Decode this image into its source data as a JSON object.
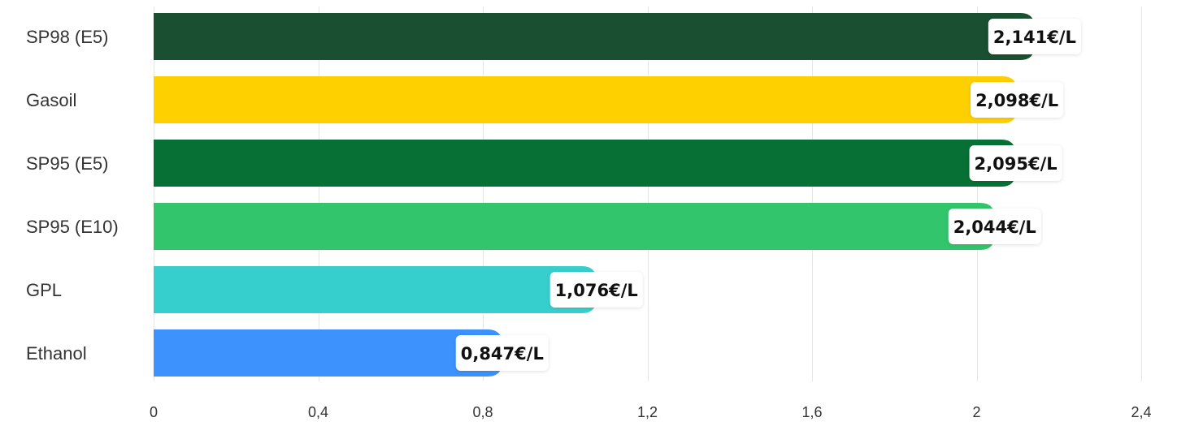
{
  "chart_data": {
    "type": "bar",
    "orientation": "horizontal",
    "categories": [
      "SP98 (E5)",
      "Gasoil",
      "SP95 (E5)",
      "SP95 (E10)",
      "GPL",
      "Ethanol"
    ],
    "values": [
      2.141,
      2.098,
      2.095,
      2.044,
      1.076,
      0.847
    ],
    "value_labels": [
      "2,141€/L",
      "2,098€/L",
      "2,095€/L",
      "2,044€/L",
      "1,076€/L",
      "0,847€/L"
    ],
    "bar_colors": [
      "#1b4f31",
      "#ffd000",
      "#077135",
      "#33c56c",
      "#37cfcd",
      "#3d92fd"
    ],
    "xlim": [
      0,
      2.4
    ],
    "x_ticks": [
      0,
      0.4,
      0.8,
      1.2,
      1.6,
      2,
      2.4
    ],
    "x_tick_labels": [
      "0",
      "0,4",
      "0,8",
      "1,2",
      "1,6",
      "2",
      "2,4"
    ],
    "grid": true,
    "legend": false,
    "title": "",
    "xlabel": "",
    "ylabel": ""
  }
}
